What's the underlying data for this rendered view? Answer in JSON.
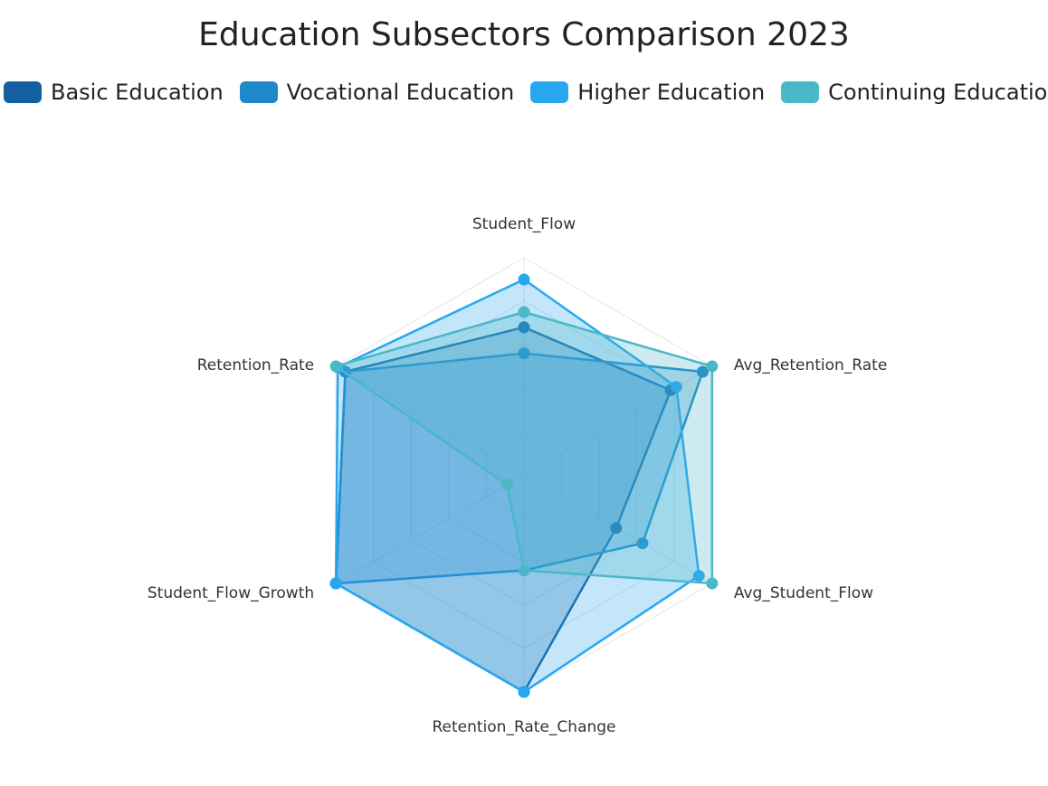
{
  "chart_data": {
    "type": "radar",
    "title": "Education Subsectors Comparison 2023",
    "indicators": [
      "Student_Flow",
      "Avg_Retention_Rate",
      "Avg_Student_Flow",
      "Retention_Rate_Change",
      "Student_Flow_Growth",
      "Retention_Rate"
    ],
    "max": 100,
    "legend_position": "top",
    "series": [
      {
        "name": "Basic Education",
        "color": "#1560a0",
        "values": [
          68,
          78,
          49,
          100,
          100,
          95
        ]
      },
      {
        "name": "Vocational Education",
        "color": "#1f88c8",
        "values": [
          56,
          95,
          63,
          44,
          100,
          95
        ]
      },
      {
        "name": "Higher Education",
        "color": "#27a7f0",
        "values": [
          90,
          81,
          93,
          100,
          100,
          99
        ]
      },
      {
        "name": "Continuing Education",
        "color": "#4ab8c6",
        "values": [
          75,
          100,
          100,
          44,
          9,
          100
        ]
      }
    ]
  }
}
